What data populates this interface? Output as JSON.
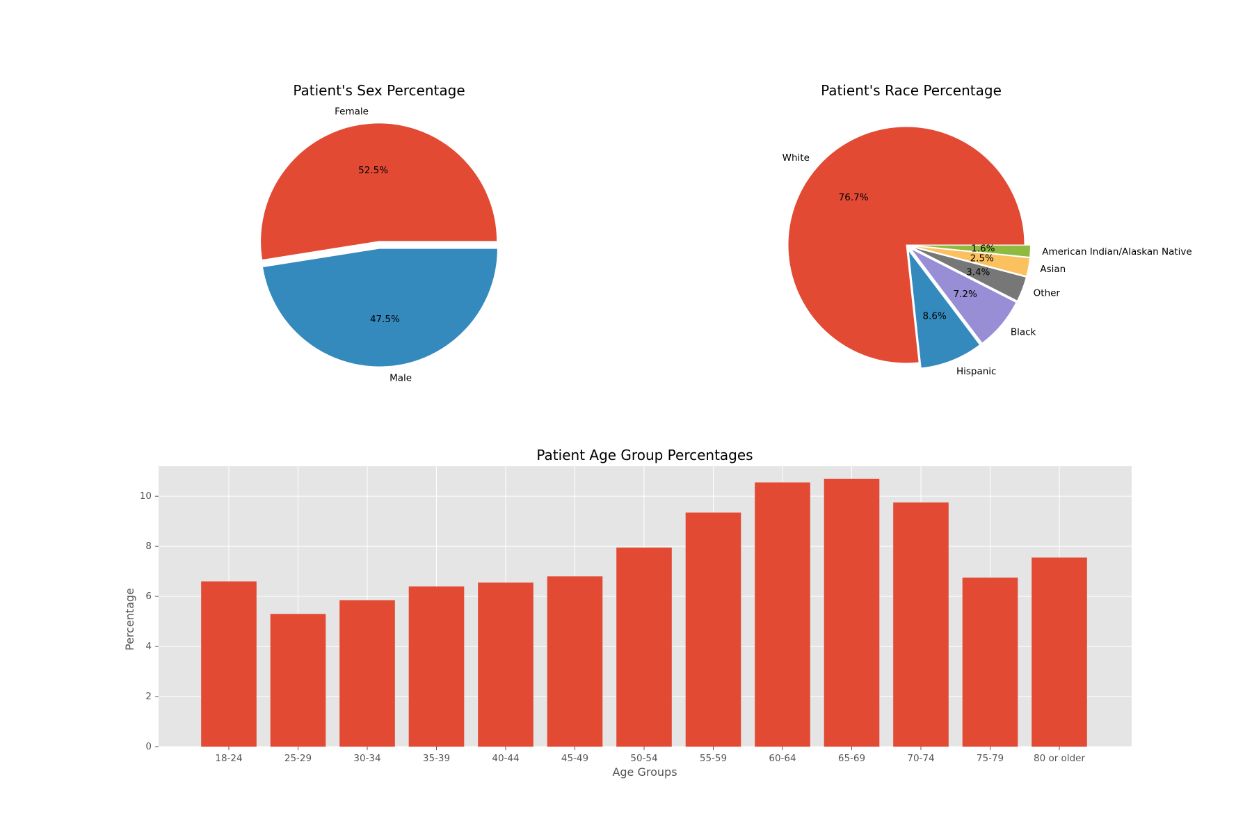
{
  "chart_data": [
    {
      "type": "pie",
      "title": "Patient's Sex Percentage",
      "labels": [
        "Female",
        "Male"
      ],
      "values": [
        52.5,
        47.5
      ],
      "pct_labels": [
        "52.5%",
        "47.5%"
      ],
      "colors": [
        "#E24A33",
        "#348ABD"
      ],
      "explode": [
        0.03,
        0.03
      ],
      "start_angle": 0
    },
    {
      "type": "pie",
      "title": "Patient's Race Percentage",
      "labels": [
        "White",
        "Hispanic",
        "Black",
        "Other",
        "Asian",
        "American Indian/Alaskan Native"
      ],
      "values": [
        76.7,
        8.6,
        7.2,
        3.4,
        2.5,
        1.6
      ],
      "pct_labels": [
        "76.7%",
        "8.6%",
        "7.2%",
        "3.4%",
        "2.5%",
        "1.6%"
      ],
      "colors": [
        "#E24A33",
        "#348ABD",
        "#988ED5",
        "#777777",
        "#FBC15E",
        "#8EBA42"
      ],
      "explode": [
        0.0,
        0.05,
        0.05,
        0.05,
        0.05,
        0.05
      ],
      "start_angle": 0
    },
    {
      "type": "bar",
      "title": "Patient Age Group Percentages",
      "xlabel": "Age Groups",
      "ylabel": "Percentage",
      "categories": [
        "18-24",
        "25-29",
        "30-34",
        "35-39",
        "40-44",
        "45-49",
        "50-54",
        "55-59",
        "60-64",
        "65-69",
        "70-74",
        "75-79",
        "80 or older"
      ],
      "values": [
        6.6,
        5.3,
        5.85,
        6.4,
        6.55,
        6.8,
        7.95,
        9.35,
        10.55,
        10.7,
        9.75,
        6.75,
        7.55
      ],
      "ylim": [
        0,
        11.2
      ],
      "yticks": [
        0,
        2,
        4,
        6,
        8,
        10
      ],
      "color": "#E24A33",
      "grid": true
    }
  ]
}
